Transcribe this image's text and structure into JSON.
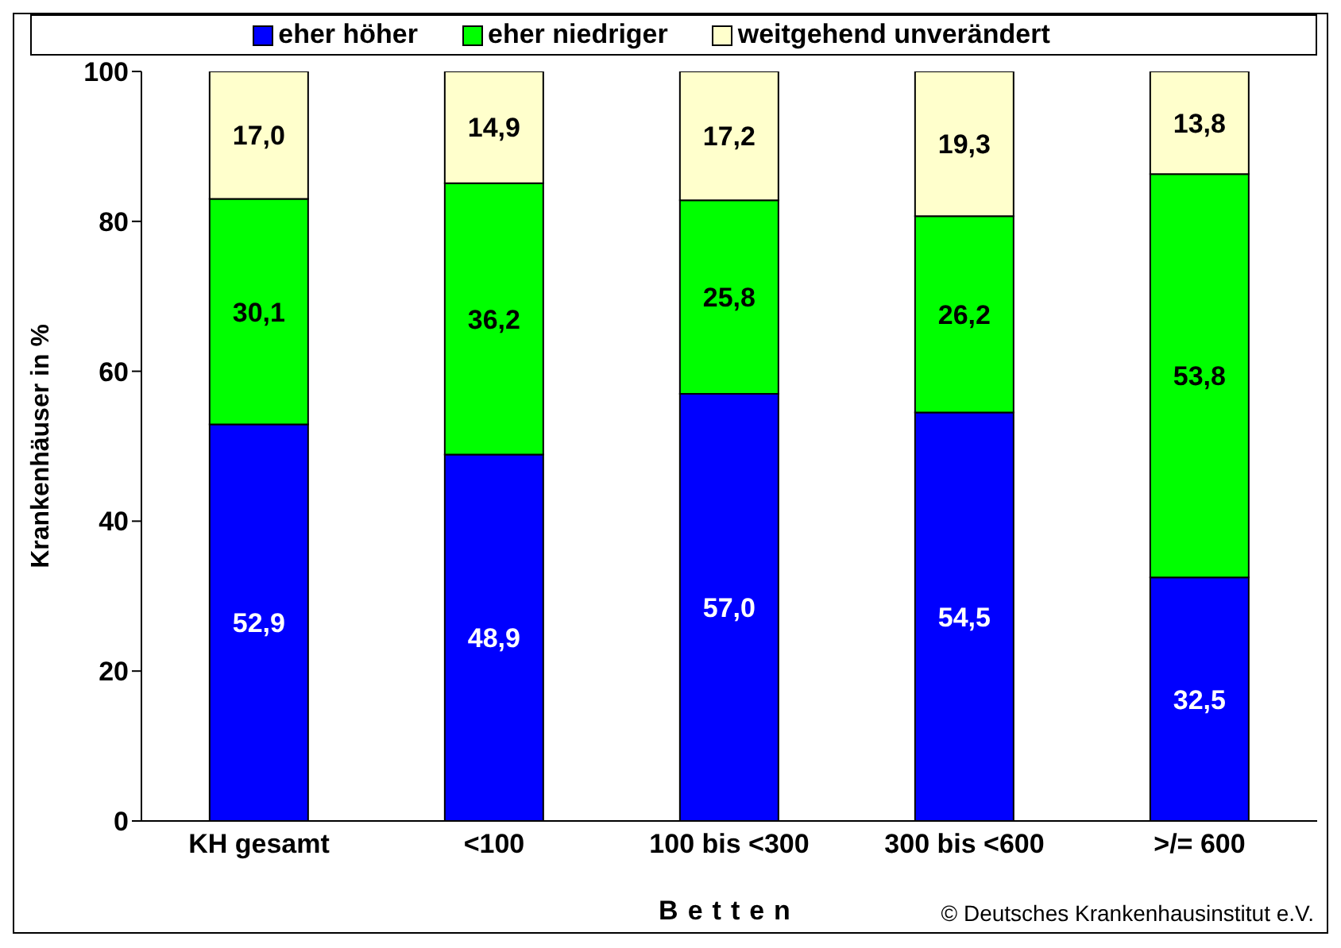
{
  "chart_data": {
    "type": "bar",
    "stacked": true,
    "ylabel": "Krankenhäuser in %",
    "xlabel": "Betten",
    "categories": [
      "KH gesamt",
      "<100",
      "100 bis <300",
      "300 bis <600",
      ">/= 600"
    ],
    "series": [
      {
        "name": "eher höher",
        "color": "#0000ff",
        "values": [
          52.9,
          48.9,
          57.0,
          54.5,
          32.5
        ],
        "value_labels": [
          "52,9",
          "48,9",
          "57,0",
          "54,5",
          "32,5"
        ]
      },
      {
        "name": "eher niedriger",
        "color": "#00ff00",
        "values": [
          30.1,
          36.2,
          25.8,
          26.2,
          53.8
        ],
        "value_labels": [
          "30,1",
          "36,2",
          "25,8",
          "26,2",
          "53,8"
        ]
      },
      {
        "name": "weitgehend unverändert",
        "color": "#ffffcc",
        "values": [
          17.0,
          14.9,
          17.2,
          19.3,
          13.8
        ],
        "value_labels": [
          "17,0",
          "14,9",
          "17,2",
          "19,3",
          "13,8"
        ]
      }
    ],
    "ylim": [
      0,
      100
    ],
    "yticks": [
      0,
      20,
      40,
      60,
      80,
      100
    ],
    "grid": false,
    "legend": "top",
    "annotations": [
      "© Deutsches Krankenhausinstitut e.V."
    ]
  }
}
